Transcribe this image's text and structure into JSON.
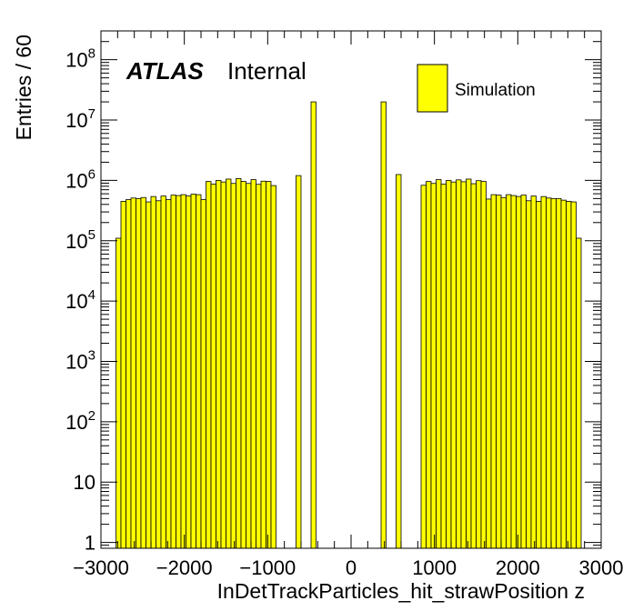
{
  "chart_data": {
    "type": "bar",
    "xlabel": "InDetTrackParticles_hit_strawPosition z",
    "ylabel": "Entries / 60",
    "xlim": [
      -3000,
      3000
    ],
    "ylim": [
      0.8,
      300000000
    ],
    "yscale": "log",
    "grid": false,
    "legend": {
      "position": "top-right",
      "entries": [
        "Simulation"
      ]
    },
    "atlas_label": {
      "bold": "ATLAS",
      "text": "Internal"
    },
    "bar_color": "#ffff00",
    "edge_color": "#000000",
    "bin_width": 60,
    "x_ticks": [
      {
        "value": -3000,
        "label": "−3000"
      },
      {
        "value": -2000,
        "label": "−2000"
      },
      {
        "value": -1000,
        "label": "−1000"
      },
      {
        "value": 0,
        "label": "0"
      },
      {
        "value": 1000,
        "label": "1000"
      },
      {
        "value": 2000,
        "label": "2000"
      },
      {
        "value": 3000,
        "label": "3000"
      }
    ],
    "y_ticks": [
      {
        "value": 1,
        "base": "1",
        "exp": ""
      },
      {
        "value": 10,
        "base": "10",
        "exp": ""
      },
      {
        "value": 100,
        "base": "10",
        "exp": "2"
      },
      {
        "value": 1000,
        "base": "10",
        "exp": "3"
      },
      {
        "value": 10000,
        "base": "10",
        "exp": "4"
      },
      {
        "value": 100000,
        "base": "10",
        "exp": "5"
      },
      {
        "value": 1000000,
        "base": "10",
        "exp": "6"
      },
      {
        "value": 10000000,
        "base": "10",
        "exp": "7"
      },
      {
        "value": 100000000,
        "base": "10",
        "exp": "8"
      }
    ],
    "bins_x": [
      -2790,
      -2730,
      -2670,
      -2610,
      -2550,
      -2490,
      -2430,
      -2370,
      -2310,
      -2250,
      -2190,
      -2130,
      -2070,
      -2010,
      -1950,
      -1890,
      -1830,
      -1770,
      -1710,
      -1650,
      -1590,
      -1530,
      -1470,
      -1410,
      -1350,
      -1290,
      -1230,
      -1170,
      -1110,
      -1050,
      -990,
      -930,
      -630,
      -450,
      390,
      570,
      870,
      930,
      990,
      1050,
      1110,
      1170,
      1230,
      1290,
      1350,
      1410,
      1470,
      1530,
      1590,
      1650,
      1710,
      1770,
      1830,
      1890,
      1950,
      2010,
      2070,
      2130,
      2190,
      2250,
      2310,
      2370,
      2430,
      2490,
      2550,
      2610,
      2670,
      2730
    ],
    "bins_y": [
      110000,
      450000,
      480000,
      510000,
      500000,
      520000,
      440000,
      540000,
      460000,
      550000,
      480000,
      570000,
      560000,
      580000,
      550000,
      590000,
      580000,
      480000,
      960000,
      870000,
      1000000,
      940000,
      1050000,
      890000,
      1070000,
      960000,
      890000,
      1030000,
      860000,
      970000,
      960000,
      820000,
      1200000,
      20000000,
      20000000,
      1250000,
      830000,
      960000,
      890000,
      1030000,
      870000,
      1000000,
      940000,
      1020000,
      950000,
      1050000,
      880000,
      990000,
      960000,
      490000,
      580000,
      570000,
      520000,
      580000,
      560000,
      540000,
      570000,
      460000,
      550000,
      450000,
      540000,
      510000,
      500000,
      500000,
      470000,
      450000,
      440000,
      110000
    ]
  }
}
